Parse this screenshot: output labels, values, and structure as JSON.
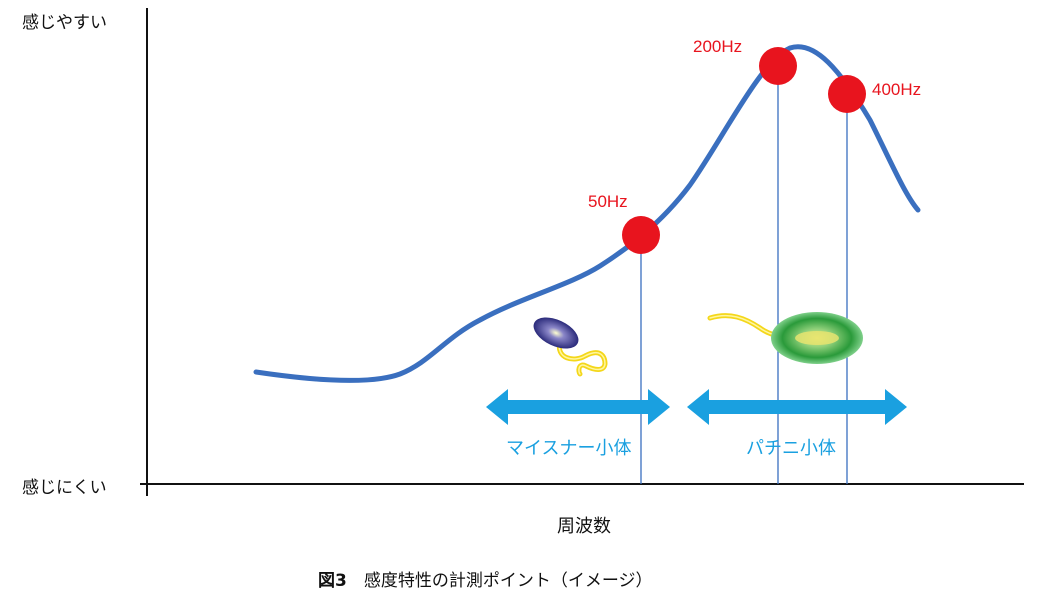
{
  "y_axis": {
    "top_label": "感じやすい",
    "bottom_label": "感じにくい"
  },
  "x_axis": {
    "label": "周波数"
  },
  "points": [
    {
      "label": "50Hz"
    },
    {
      "label": "200Hz"
    },
    {
      "label": "400Hz"
    }
  ],
  "ranges": [
    {
      "label": "マイスナー小体"
    },
    {
      "label": "パチニ小体"
    }
  ],
  "caption": {
    "number": "図3",
    "text": "感度特性の計測ポイント（イメージ）"
  },
  "colors": {
    "curve": "#3a6fbf",
    "points": "#e8141e",
    "ranges": "#1aa0e0",
    "axis": "#111111"
  }
}
